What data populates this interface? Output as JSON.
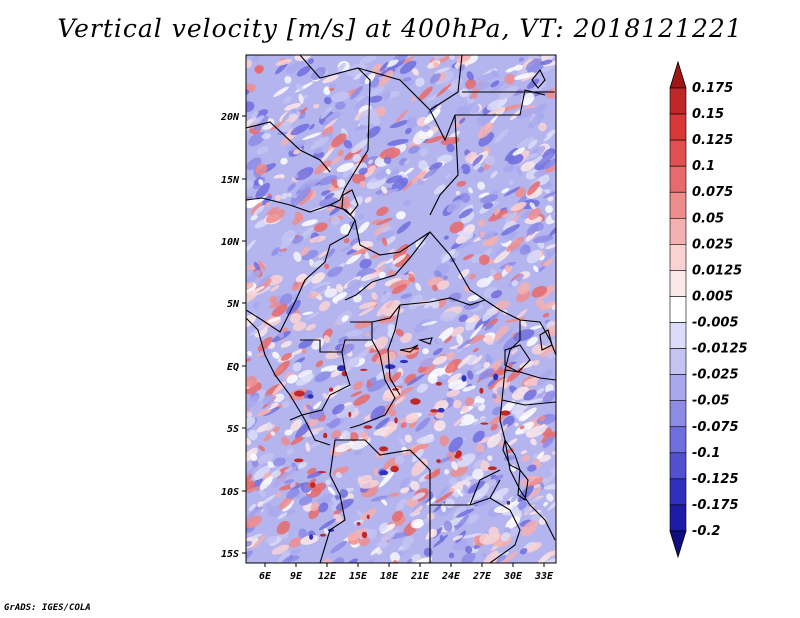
{
  "title": "Vertical velocity [m/s] at 400hPa, VT: 2018121221",
  "credit": "GrADS: IGES/COLA",
  "map": {
    "lat_ticks": [
      "20N",
      "15N",
      "10N",
      "5N",
      "EQ",
      "5S",
      "10S",
      "15S"
    ],
    "lon_ticks": [
      "6E",
      "9E",
      "12E",
      "15E",
      "18E",
      "21E",
      "24E",
      "27E",
      "30E",
      "33E"
    ]
  },
  "colorbar": {
    "labels": [
      "0.175",
      "0.15",
      "0.125",
      "0.1",
      "0.075",
      "0.05",
      "0.025",
      "0.0125",
      "0.005",
      "-0.005",
      "-0.0125",
      "-0.025",
      "-0.05",
      "-0.075",
      "-0.1",
      "-0.125",
      "-0.175",
      "-0.2"
    ],
    "colors": [
      "#a01616",
      "#c02828",
      "#d83838",
      "#e05050",
      "#e86a6a",
      "#ef8c8c",
      "#f5b0b0",
      "#fad2d2",
      "#fde8e8",
      "#ffffff",
      "#dcdcf8",
      "#c4c4f2",
      "#a8a8ee",
      "#8c8ce6",
      "#6e6ede",
      "#5050d0",
      "#3030bc",
      "#1c1ca6",
      "#0e0e80"
    ]
  }
}
